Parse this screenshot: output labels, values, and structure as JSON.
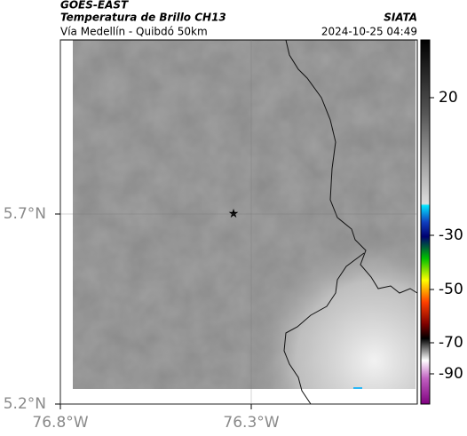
{
  "header": {
    "satellite": "GOES-EAST",
    "product": "Temperatura de Brillo CH13",
    "location": "Vía Medellín - Quibdó 50km",
    "agency": "SIATA",
    "datetime": "2024-10-25 04:49"
  },
  "map": {
    "xticks": [
      {
        "value": -76.8,
        "label": "76.8°W"
      },
      {
        "value": -76.3,
        "label": "76.3°W"
      }
    ],
    "yticks": [
      {
        "value": 5.7,
        "label": "5.7°N"
      },
      {
        "value": 5.2,
        "label": "5.2°N"
      }
    ]
  },
  "colorbar": {
    "ticks": [
      20,
      -30,
      -50,
      -70,
      -90
    ]
  }
}
